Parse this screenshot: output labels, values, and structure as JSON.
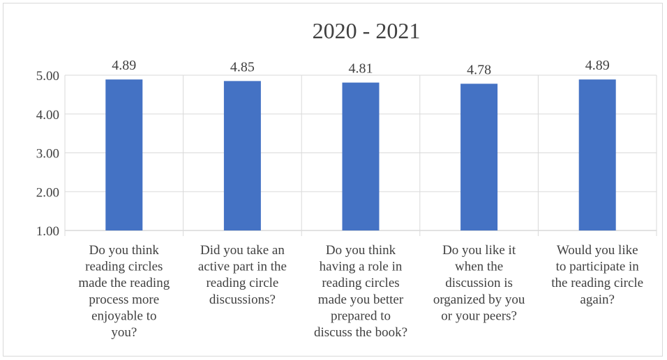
{
  "chart_data": {
    "type": "bar",
    "title": "2020 - 2021",
    "categories": [
      "Do you think reading circles made the reading process more enjoyable to you?",
      "Did you take an active part in the reading circle discussions?",
      "Do you think having a role in reading circles made you better prepared to discuss the book?",
      "Do you like it when the discussion is organized by you or your peers?",
      "Would you like to participate in the reading circle again?"
    ],
    "category_lines": [
      [
        "Do you think",
        "reading circles",
        "made the reading",
        "process more",
        "enjoyable to",
        "you?"
      ],
      [
        "Did you take an",
        "active part in the",
        "reading circle",
        "discussions?"
      ],
      [
        "Do you think",
        "having a role in",
        "reading circles",
        "made you better",
        "prepared to",
        "discuss the book?"
      ],
      [
        "Do you like it",
        "when the",
        "discussion is",
        "organized by you",
        "or your peers?"
      ],
      [
        "Would you like",
        "to participate in",
        "the reading circle",
        "again?"
      ]
    ],
    "values": [
      4.89,
      4.85,
      4.81,
      4.78,
      4.89
    ],
    "data_labels": [
      "4.89",
      "4.85",
      "4.81",
      "4.78",
      "4.89"
    ],
    "ylim": [
      1,
      5
    ],
    "yticks": [
      "1.00",
      "2.00",
      "3.00",
      "4.00",
      "5.00"
    ],
    "ytick_values": [
      1,
      2,
      3,
      4,
      5
    ],
    "grid": true,
    "legend": "none",
    "xlabel": "",
    "ylabel": "",
    "colors": {
      "bar": "#4472C4",
      "gridline": "#d9d9d9",
      "text": "#404040",
      "border": "#d9d9d9"
    }
  }
}
